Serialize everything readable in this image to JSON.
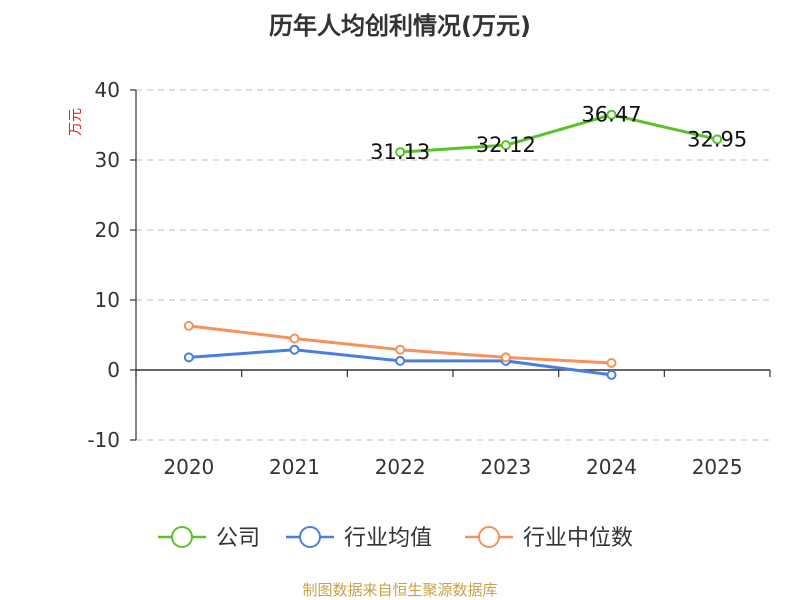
{
  "chart_data": {
    "type": "line",
    "title": "历年人均创利情况(万元)",
    "ylabel": "万元",
    "xlabel": "",
    "categories": [
      "2020",
      "2021",
      "2022",
      "2023",
      "2024",
      "2025"
    ],
    "ylim": [
      -10,
      40
    ],
    "yticks": [
      40,
      30,
      20,
      10,
      0,
      -10
    ],
    "grid": true,
    "legend_position": "bottom",
    "series": [
      {
        "name": "公司",
        "color": "#5bc22a",
        "values": [
          null,
          null,
          31.13,
          32.12,
          36.47,
          32.95
        ],
        "labels": [
          "",
          "",
          "31.13",
          "32.12",
          "36.47",
          "32.95"
        ]
      },
      {
        "name": "行业均值",
        "color": "#4a7fe0",
        "values": [
          1.8,
          2.9,
          1.3,
          1.3,
          -0.7,
          null
        ],
        "labels": []
      },
      {
        "name": "行业中位数",
        "color": "#f5915a",
        "values": [
          6.3,
          4.5,
          2.9,
          1.8,
          1.0,
          null
        ],
        "labels": []
      }
    ]
  },
  "footer": {
    "source": "制图数据来自恒生聚源数据库"
  }
}
